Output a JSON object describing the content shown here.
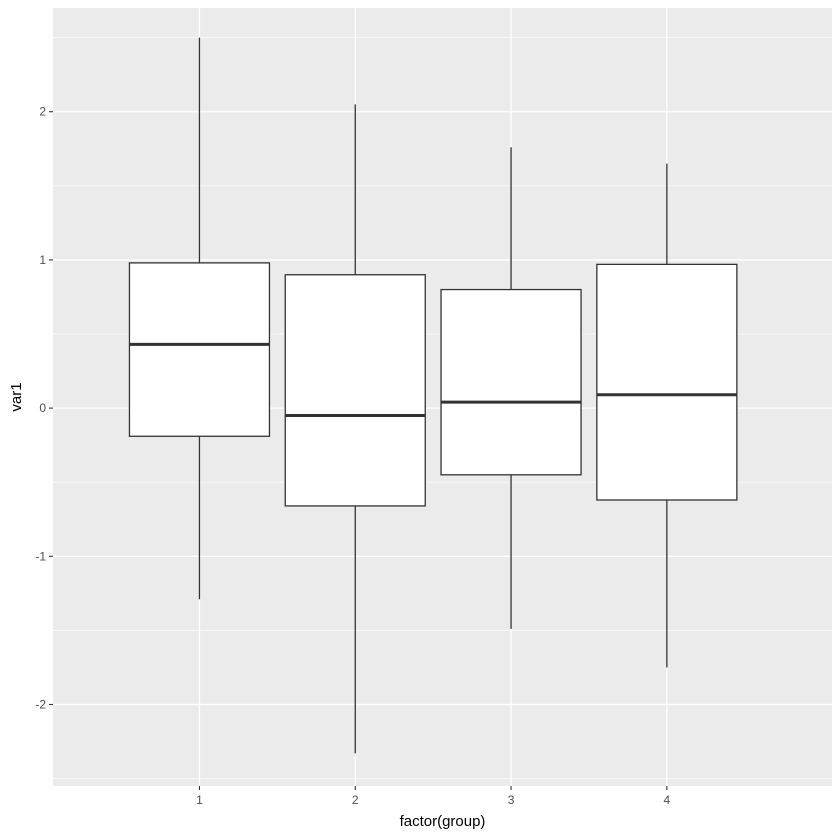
{
  "chart_data": {
    "type": "boxplot",
    "xlabel": "factor(group)",
    "ylabel": "var1",
    "categories": [
      "1",
      "2",
      "3",
      "4"
    ],
    "ylim": [
      -2.55,
      2.7
    ],
    "y_major_ticks": [
      -2,
      -1,
      0,
      1,
      2
    ],
    "y_tick_labels": [
      "-2",
      "-1",
      "0",
      "1",
      "2"
    ],
    "grid": true,
    "boxes": [
      {
        "group": "1",
        "whisker_low": -1.29,
        "q1": -0.19,
        "median": 0.43,
        "q3": 0.98,
        "whisker_high": 2.5
      },
      {
        "group": "2",
        "whisker_low": -2.33,
        "q1": -0.66,
        "median": -0.05,
        "q3": 0.9,
        "whisker_high": 2.05
      },
      {
        "group": "3",
        "whisker_low": -1.49,
        "q1": -0.45,
        "median": 0.04,
        "q3": 0.8,
        "whisker_high": 1.76
      },
      {
        "group": "4",
        "whisker_low": -1.75,
        "q1": -0.62,
        "median": 0.09,
        "q3": 0.97,
        "whisker_high": 1.65
      }
    ],
    "colors": {
      "panel_background": "#ebebeb",
      "grid_major": "#ffffff",
      "box_fill": "#ffffff",
      "box_stroke": "#333333"
    }
  }
}
